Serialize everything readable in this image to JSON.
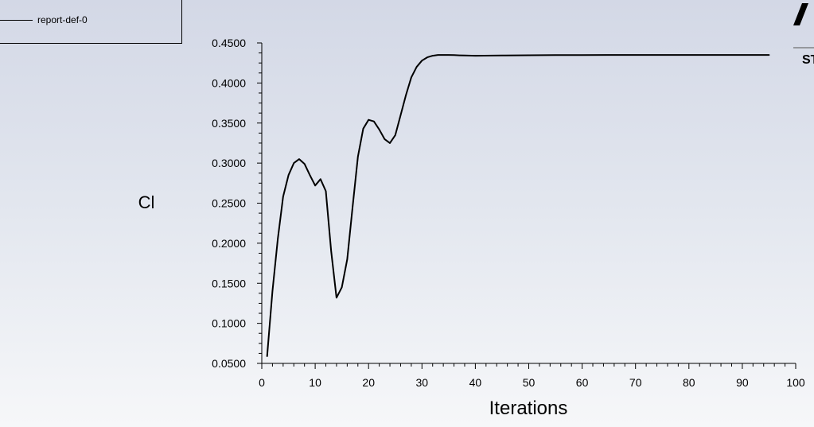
{
  "legend": {
    "entries": [
      {
        "label": "report-def-0",
        "color": "#000000"
      }
    ]
  },
  "logo": {
    "visible_text": "ST"
  },
  "chart_data": {
    "type": "line",
    "xlabel": "Iterations",
    "ylabel": "Cl",
    "xlim": [
      0,
      100
    ],
    "ylim": [
      0.05,
      0.45
    ],
    "x_ticks": [
      "0",
      "10",
      "20",
      "30",
      "40",
      "50",
      "60",
      "70",
      "80",
      "90",
      "100"
    ],
    "y_ticks": [
      "0.0500",
      "0.1000",
      "0.1500",
      "0.2000",
      "0.2500",
      "0.3000",
      "0.3500",
      "0.4000",
      "0.4500"
    ],
    "x_tick_values": [
      0,
      10,
      20,
      30,
      40,
      50,
      60,
      70,
      80,
      90,
      100
    ],
    "y_tick_values": [
      0.05,
      0.1,
      0.15,
      0.2,
      0.25,
      0.3,
      0.35,
      0.4,
      0.45
    ],
    "grid": false,
    "legend_position": "top-left",
    "series": [
      {
        "name": "report-def-0",
        "color": "#000000",
        "x": [
          1,
          2,
          3,
          4,
          5,
          6,
          7,
          8,
          9,
          10,
          11,
          12,
          13,
          14,
          15,
          16,
          17,
          18,
          19,
          20,
          21,
          22,
          23,
          24,
          25,
          26,
          27,
          28,
          29,
          30,
          31,
          32,
          33,
          34,
          35,
          36,
          37,
          38,
          40,
          45,
          50,
          55,
          60,
          65,
          70,
          75,
          80,
          85,
          90,
          95
        ],
        "y": [
          0.059,
          0.14,
          0.205,
          0.258,
          0.285,
          0.3,
          0.305,
          0.299,
          0.285,
          0.272,
          0.28,
          0.265,
          0.19,
          0.132,
          0.145,
          0.18,
          0.245,
          0.308,
          0.343,
          0.354,
          0.352,
          0.342,
          0.33,
          0.325,
          0.335,
          0.36,
          0.385,
          0.407,
          0.42,
          0.428,
          0.432,
          0.434,
          0.435,
          0.435,
          0.435,
          0.4348,
          0.4345,
          0.4343,
          0.434,
          0.4343,
          0.4346,
          0.4348,
          0.4349,
          0.435,
          0.435,
          0.435,
          0.435,
          0.435,
          0.435,
          0.435
        ]
      }
    ]
  }
}
